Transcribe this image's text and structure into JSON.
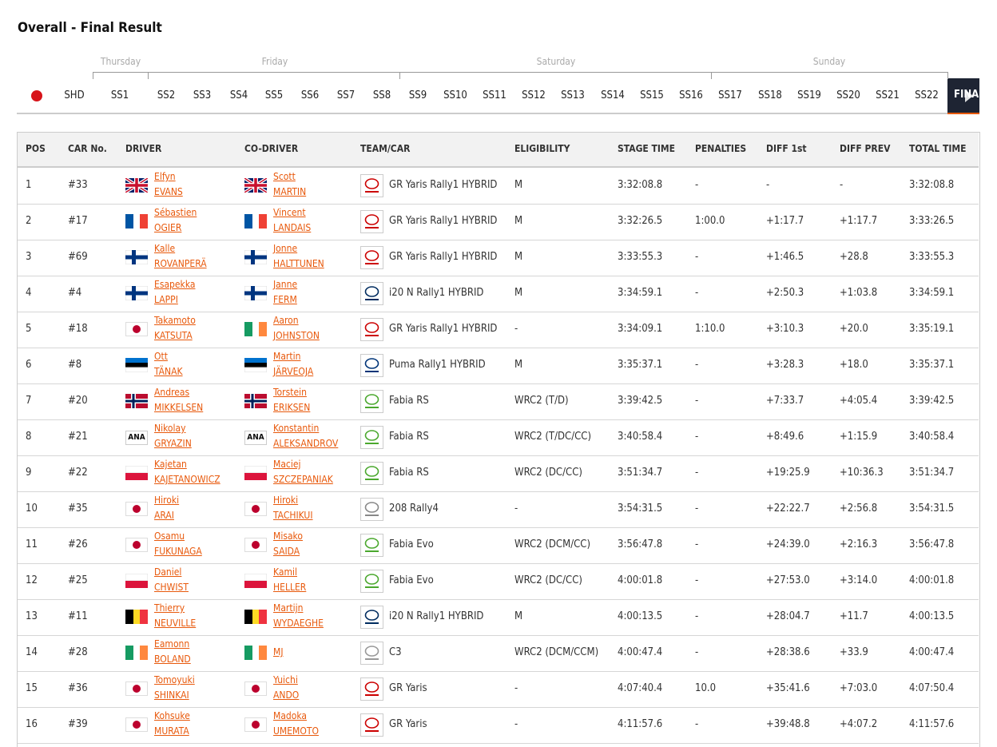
{
  "title": "Overall - Final Result",
  "days": [
    "Thursday",
    "Friday",
    "Saturday",
    "Sunday"
  ],
  "stages": [
    "SHD",
    "SS1",
    "SS2",
    "SS3",
    "SS4",
    "SS5",
    "SS6",
    "SS7",
    "SS8",
    "SS9",
    "SS10",
    "SS11",
    "SS12",
    "SS13",
    "SS14",
    "SS15",
    "SS16",
    "SS17",
    "SS18",
    "SS19",
    "SS20",
    "SS21",
    "SS22",
    "FINAL"
  ],
  "table": {
    "headers": [
      "POS",
      "CAR No.",
      "DRIVER",
      "CO-DRIVER",
      "TEAM/CAR",
      "ELIGIBILITY",
      "STAGE TIME",
      "PENALTIES",
      "DIFF 1st",
      "DIFF PREV",
      "TOTAL TIME"
    ],
    "rows": [
      {
        "pos": "1",
        "car_no": "#33",
        "driver": [
          "Elfyn",
          "EVANS"
        ],
        "co_driver": [
          "Scott",
          "MARTIN"
        ],
        "team_car": "GR Yaris Rally1 HYBRID",
        "eligibility": "M",
        "stage_time": "3:32:08.8",
        "penalties": "-",
        "diff_1st": "-",
        "diff_prev": "-",
        "total_time": "3:32:08.8"
      },
      {
        "pos": "2",
        "car_no": "#17",
        "driver": [
          "Sébastien",
          "OGIER"
        ],
        "co_driver": [
          "Vincent",
          "LANDAIS"
        ],
        "team_car": "GR Yaris Rally1 HYBRID",
        "eligibility": "M",
        "stage_time": "3:32:26.5",
        "penalties": "1:00.0",
        "diff_1st": "+1:17.7",
        "diff_prev": "+1:17.7",
        "total_time": "3:33:26.5"
      },
      {
        "pos": "3",
        "car_no": "#69",
        "driver": [
          "Kalle",
          "ROVANPERÄ"
        ],
        "co_driver": [
          "Jonne",
          "HALTTUNEN"
        ],
        "team_car": "GR Yaris Rally1 HYBRID",
        "eligibility": "M",
        "stage_time": "3:33:55.3",
        "penalties": "-",
        "diff_1st": "+1:46.5",
        "diff_prev": "+28.8",
        "total_time": "3:33:55.3"
      },
      {
        "pos": "4",
        "car_no": "#4",
        "driver": [
          "Esapekka",
          "LAPPI"
        ],
        "co_driver": [
          "Janne",
          "FERM"
        ],
        "team_car": "i20 N Rally1 HYBRID",
        "eligibility": "M",
        "stage_time": "3:34:59.1",
        "penalties": "-",
        "diff_1st": "+2:50.3",
        "diff_prev": "+1:03.8",
        "total_time": "3:34:59.1"
      },
      {
        "pos": "5",
        "car_no": "#18",
        "driver": [
          "Takamoto",
          "KATSUTA"
        ],
        "co_driver": [
          "Aaron",
          "JOHNSTON"
        ],
        "team_car": "GR Yaris Rally1 HYBRID",
        "eligibility": "-",
        "stage_time": "3:34:09.1",
        "penalties": "1:10.0",
        "diff_1st": "+3:10.3",
        "diff_prev": "+20.0",
        "total_time": "3:35:19.1"
      },
      {
        "pos": "6",
        "car_no": "#8",
        "driver": [
          "Ott",
          "TÄNAK"
        ],
        "co_driver": [
          "Martin",
          "JÄRVEOJA"
        ],
        "team_car": "Puma Rally1 HYBRID",
        "eligibility": "M",
        "stage_time": "3:35:37.1",
        "penalties": "-",
        "diff_1st": "+3:28.3",
        "diff_prev": "+18.0",
        "total_time": "3:35:37.1"
      },
      {
        "pos": "7",
        "car_no": "#20",
        "driver": [
          "Andreas",
          "MIKKELSEN"
        ],
        "co_driver": [
          "Torstein",
          "ERIKSEN"
        ],
        "team_car": "Fabia RS",
        "eligibility": "WRC2 (T/D)",
        "stage_time": "3:39:42.5",
        "penalties": "-",
        "diff_1st": "+7:33.7",
        "diff_prev": "+4:05.4",
        "total_time": "3:39:42.5"
      },
      {
        "pos": "8",
        "car_no": "#21",
        "driver": [
          "Nikolay",
          "GRYAZIN"
        ],
        "co_driver": [
          "Konstantin",
          "ALEKSANDROV"
        ],
        "driver_badge": "ANA",
        "co_driver_badge": "ANA",
        "team_car": "Fabia RS",
        "eligibility": "WRC2 (T/DC/CC)",
        "stage_time": "3:40:58.4",
        "penalties": "-",
        "diff_1st": "+8:49.6",
        "diff_prev": "+1:15.9",
        "total_time": "3:40:58.4"
      },
      {
        "pos": "9",
        "car_no": "#22",
        "driver": [
          "Kajetan",
          "KAJETANOWICZ"
        ],
        "co_driver": [
          "Maciej",
          "SZCZEPANIAK"
        ],
        "team_car": "Fabia RS",
        "eligibility": "WRC2 (DC/CC)",
        "stage_time": "3:51:34.7",
        "penalties": "-",
        "diff_1st": "+19:25.9",
        "diff_prev": "+10:36.3",
        "total_time": "3:51:34.7"
      },
      {
        "pos": "10",
        "car_no": "#35",
        "driver": [
          "Hiroki",
          "ARAI"
        ],
        "co_driver": [
          "Hiroki",
          "TACHIKUI"
        ],
        "team_car": "208 Rally4",
        "eligibility": "-",
        "stage_time": "3:54:31.5",
        "penalties": "-",
        "diff_1st": "+22:22.7",
        "diff_prev": "+2:56.8",
        "total_time": "3:54:31.5"
      },
      {
        "pos": "11",
        "car_no": "#26",
        "driver": [
          "Osamu",
          "FUKUNAGA"
        ],
        "co_driver": [
          "Misako",
          "SAIDA"
        ],
        "team_car": "Fabia Evo",
        "eligibility": "WRC2 (DCM/CC)",
        "stage_time": "3:56:47.8",
        "penalties": "-",
        "diff_1st": "+24:39.0",
        "diff_prev": "+2:16.3",
        "total_time": "3:56:47.8"
      },
      {
        "pos": "12",
        "car_no": "#25",
        "driver": [
          "Daniel",
          "CHWIST"
        ],
        "co_driver": [
          "Kamil",
          "HELLER"
        ],
        "team_car": "Fabia Evo",
        "eligibility": "WRC2 (DC/CC)",
        "stage_time": "4:00:01.8",
        "penalties": "-",
        "diff_1st": "+27:53.0",
        "diff_prev": "+3:14.0",
        "total_time": "4:00:01.8"
      },
      {
        "pos": "13",
        "car_no": "#11",
        "driver": [
          "Thierry",
          "NEUVILLE"
        ],
        "co_driver": [
          "Martijn",
          "WYDAEGHE"
        ],
        "team_car": "i20 N Rally1 HYBRID",
        "eligibility": "M",
        "stage_time": "4:00:13.5",
        "penalties": "-",
        "diff_1st": "+28:04.7",
        "diff_prev": "+11.7",
        "total_time": "4:00:13.5"
      },
      {
        "pos": "14",
        "car_no": "#28",
        "driver": [
          "Eamonn",
          "BOLAND"
        ],
        "co_driver": [
          "MJ"
        ],
        "team_car": "C3",
        "eligibility": "WRC2 (DCM/CCM)",
        "stage_time": "4:00:47.4",
        "penalties": "-",
        "diff_1st": "+28:38.6",
        "diff_prev": "+33.9",
        "total_time": "4:00:47.4"
      },
      {
        "pos": "15",
        "car_no": "#36",
        "driver": [
          "Tomoyuki",
          "SHINKAI"
        ],
        "co_driver": [
          "Yuichi",
          "ANDO"
        ],
        "team_car": "GR Yaris",
        "eligibility": "-",
        "stage_time": "4:07:40.4",
        "penalties": "10.0",
        "diff_1st": "+35:41.6",
        "diff_prev": "+7:03.0",
        "total_time": "4:07:50.4"
      },
      {
        "pos": "16",
        "car_no": "#39",
        "driver": [
          "Kohsuke",
          "MURATA"
        ],
        "co_driver": [
          "Madoka",
          "UMEMOTO"
        ],
        "team_car": "GR Yaris",
        "eligibility": "-",
        "stage_time": "4:11:57.6",
        "penalties": "-",
        "diff_1st": "+39:48.8",
        "diff_prev": "+4:07.2",
        "total_time": "4:11:57.6"
      }
    ]
  }
}
